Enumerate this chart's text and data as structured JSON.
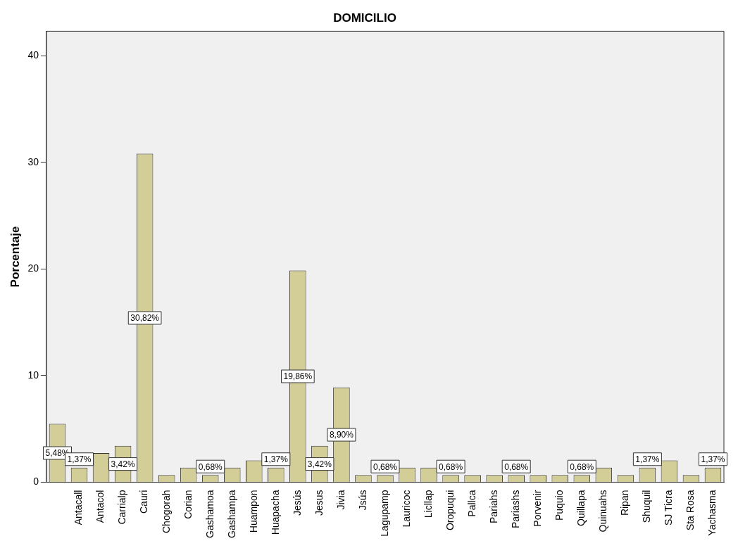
{
  "chart_data": {
    "type": "bar",
    "title": "DOMICILIO",
    "ylabel": "Porcentaje",
    "categories": [
      null,
      "Antacall",
      "Antacol",
      "Carrialp",
      "Cauri",
      "Chogorah",
      "Corian",
      "Gashamoa",
      "Gashampa",
      "Huampon",
      "Huapacha",
      "Jesús",
      "Jesus",
      "Jivia",
      "Jsús",
      "Lagupamp",
      "Lauricoc",
      "Licllap",
      "Oropuqui",
      "Pallca",
      "Pariahs",
      "Pariashs",
      "Porvenir",
      "Puquio",
      "Quillapa",
      "Quinuahs",
      "Ripan",
      "Shuquil",
      "SJ Ticra",
      "Sta Rosa",
      "Yachasma"
    ],
    "values": [
      5.48,
      1.37,
      2.74,
      3.42,
      30.82,
      0.68,
      1.37,
      0.68,
      1.37,
      2.05,
      1.37,
      19.86,
      3.42,
      8.9,
      0.68,
      0.68,
      1.37,
      1.37,
      0.68,
      0.68,
      0.68,
      0.68,
      0.68,
      0.68,
      0.68,
      1.37,
      0.68,
      1.37,
      2.05,
      0.68,
      1.37
    ],
    "value_labels": [
      "5,48%",
      "1,37%",
      null,
      "3,42%",
      "30,82%",
      null,
      null,
      "0,68%",
      null,
      null,
      "1,37%",
      "19,86%",
      "3,42%",
      "8,90%",
      null,
      "0,68%",
      null,
      null,
      "0,68%",
      null,
      null,
      "0,68%",
      null,
      null,
      "0,68%",
      null,
      null,
      "1,37%",
      null,
      null,
      "1,37%"
    ],
    "color": "#d3ce98",
    "ylim": [
      0,
      42.3
    ],
    "yticks": [
      0,
      10,
      20,
      30,
      40
    ],
    "grid": false,
    "legend": false
  }
}
